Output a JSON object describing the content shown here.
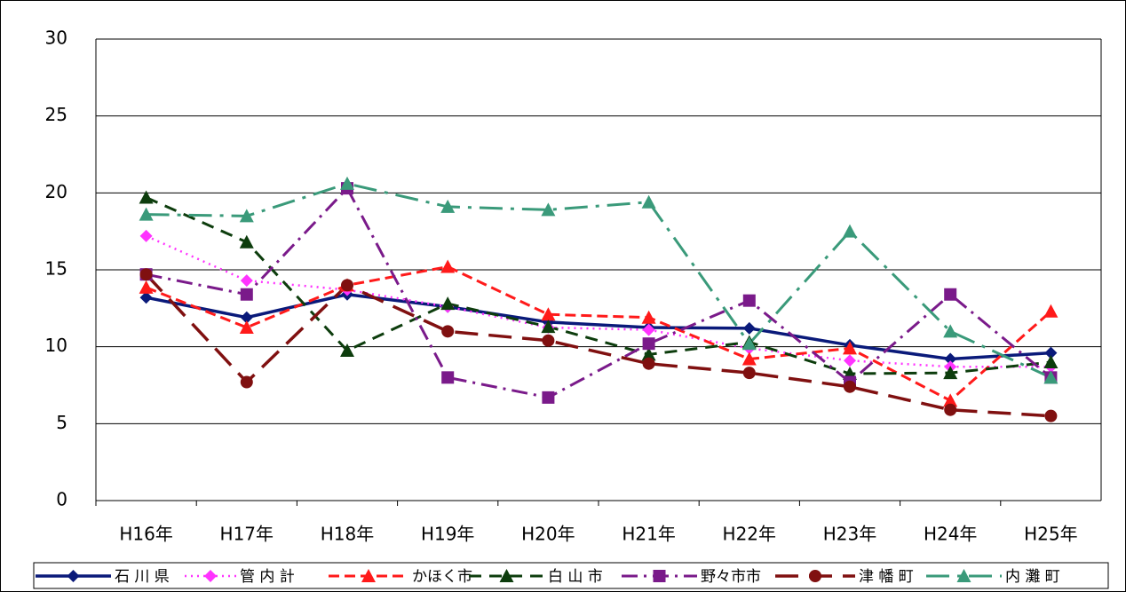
{
  "chart_data": {
    "type": "line",
    "categories": [
      "H16年",
      "H17年",
      "H18年",
      "H19年",
      "H20年",
      "H21年",
      "H22年",
      "H23年",
      "H24年",
      "H25年"
    ],
    "ylim": [
      0,
      30
    ],
    "yticks": [
      0,
      5,
      10,
      15,
      20,
      25,
      30
    ],
    "grid": true,
    "legend": "bottom",
    "series": [
      {
        "name": "石 川 県",
        "color": "#0a1a7a",
        "values": [
          13.2,
          11.9,
          13.4,
          12.6,
          11.6,
          11.25,
          11.2,
          10.1,
          9.2,
          9.6
        ]
      },
      {
        "name": "管 内 計",
        "color": "#ff33ff",
        "values": [
          17.2,
          14.3,
          13.7,
          12.6,
          11.25,
          11.1,
          9.9,
          9.1,
          8.7,
          8.7
        ]
      },
      {
        "name": "かほく市",
        "color": "#ff1a1a",
        "values": [
          13.85,
          11.25,
          14.0,
          15.2,
          12.1,
          11.9,
          9.2,
          9.9,
          6.5,
          12.3
        ]
      },
      {
        "name": "白 山 市",
        "color": "#0d3d0d",
        "values": [
          19.7,
          16.8,
          9.75,
          12.8,
          11.3,
          9.5,
          10.3,
          8.25,
          8.3,
          9.0
        ]
      },
      {
        "name": "野々市市",
        "color": "#7a1a8a",
        "values": [
          14.7,
          13.4,
          20.3,
          8.0,
          6.7,
          10.2,
          13.0,
          7.7,
          13.4,
          8.0
        ]
      },
      {
        "name": "津 幡 町",
        "color": "#801010",
        "values": [
          14.7,
          7.7,
          14.0,
          11.0,
          10.4,
          8.9,
          8.3,
          7.4,
          5.9,
          5.5
        ]
      },
      {
        "name": "内 灘 町",
        "color": "#3a9a7a",
        "values": [
          18.6,
          18.5,
          20.6,
          19.1,
          18.9,
          19.4,
          10.2,
          17.5,
          11.0,
          8.0
        ]
      }
    ]
  }
}
